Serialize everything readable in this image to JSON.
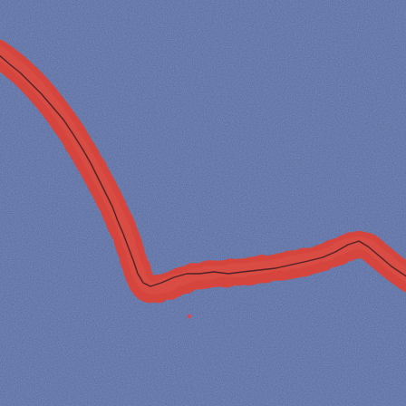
{
  "image": {
    "subject": "painted-wall-crack",
    "colors": {
      "wall": "#6c86c8",
      "wall_light": "#7d95d2",
      "wall_dark": "#5a73b6",
      "stripe": "#d5443c",
      "stripe_light": "#e05a50",
      "crack": "#3a1a22",
      "speck": "#e0444a"
    }
  }
}
